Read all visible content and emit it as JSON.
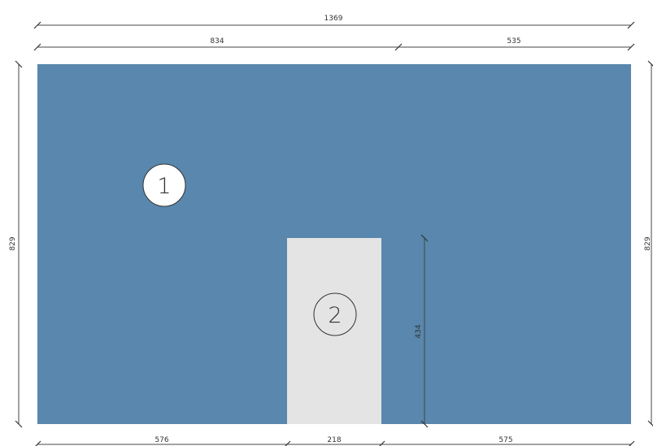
{
  "drawing": {
    "panel_1": {
      "number": "1",
      "color": "#5987ad"
    },
    "panel_2": {
      "number": "2",
      "color": "#e4e4e4"
    }
  },
  "dimensions": {
    "top_overall": "1369",
    "top_left_segment": "834",
    "top_right_segment": "535",
    "left_height": "829",
    "right_height": "829",
    "opening_height": "434",
    "bottom_left": "576",
    "bottom_middle": "218",
    "bottom_right": "575"
  }
}
